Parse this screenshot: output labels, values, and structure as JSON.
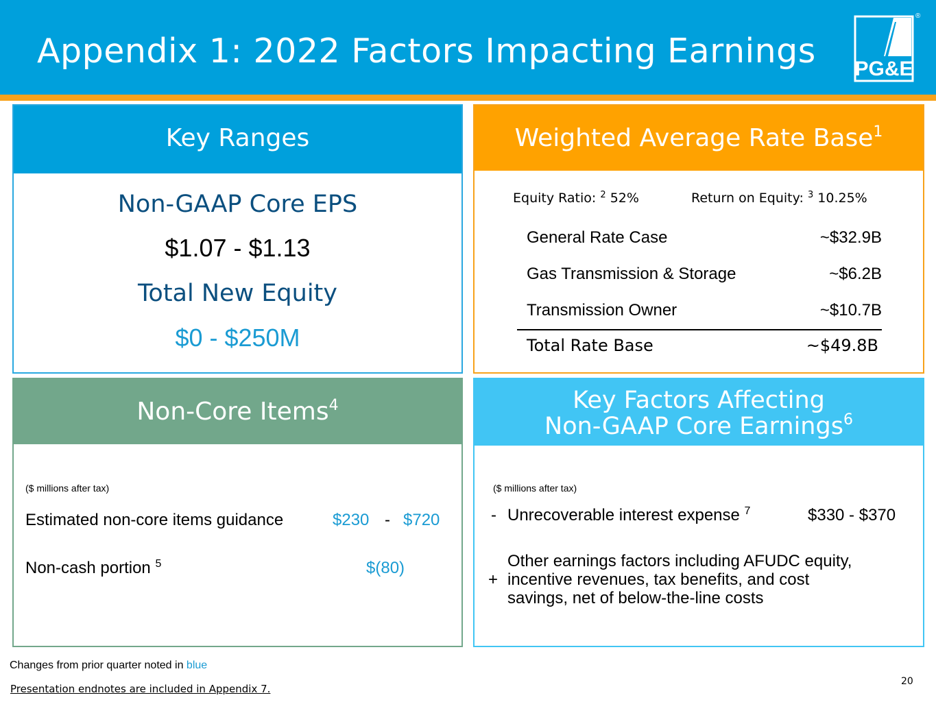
{
  "header": {
    "title": "Appendix 1: 2022 Factors Impacting Earnings",
    "logo_text": "PG&E",
    "registered_mark": "®",
    "colors": {
      "header": "#00a0dc",
      "stripe": "#f7a21b"
    }
  },
  "key_ranges": {
    "title": "Key Ranges",
    "eps_label": "Non-GAAP Core EPS",
    "eps_value": "$1.07 - $1.13",
    "equity_label": "Total New Equity",
    "equity_value": "$0 - $250M"
  },
  "rate_base": {
    "title": "Weighted Average Rate Base",
    "title_note": "1",
    "equity_ratio_label": "Equity Ratio:",
    "equity_ratio_note": "2",
    "equity_ratio_value": "52%",
    "roe_label": "Return on Equity:",
    "roe_note": "3",
    "roe_value": "10.25%",
    "rows": [
      {
        "label": "General Rate Case",
        "value": "~$32.9B"
      },
      {
        "label": "Gas Transmission & Storage",
        "value": "~$6.2B"
      },
      {
        "label": "Transmission Owner",
        "value": "~$10.7B"
      }
    ],
    "total": {
      "label": "Total Rate Base",
      "value": "~$49.8B"
    }
  },
  "non_core": {
    "title": "Non-Core Items",
    "title_note": "4",
    "units": "($ millions after tax)",
    "guidance_label": "Estimated non-core items guidance",
    "guidance_low": "$230",
    "guidance_sep": "-",
    "guidance_high": "$720",
    "noncash_label": "Non-cash portion",
    "noncash_note": "5",
    "noncash_value": "$(80)"
  },
  "key_factors": {
    "title_line1": "Key Factors Affecting",
    "title_line2": "Non-GAAP Core Earnings",
    "title_note": "6",
    "units": "($ millions after tax)",
    "items": [
      {
        "sign": "-",
        "text": "Unrecoverable interest expense",
        "note": "7",
        "value": "$330 - $370"
      },
      {
        "sign": "+",
        "lines": [
          "Other earnings factors including AFUDC equity,",
          "incentive revenues, tax benefits, and cost",
          "savings, net of below-the-line costs"
        ]
      }
    ]
  },
  "footer": {
    "note_prefix": "Changes from prior quarter noted in",
    "note_blue": "blue",
    "endnotes": "Presentation endnotes are included in Appendix 7.",
    "page_number": "20"
  }
}
